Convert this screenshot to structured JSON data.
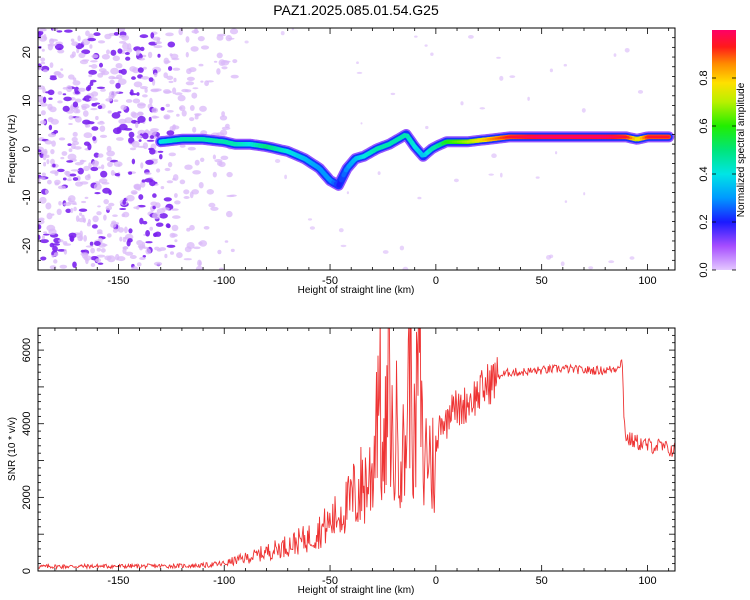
{
  "title": "PAZ1.2025.085.01.54.G25",
  "colors": {
    "snr_line": "#ee3333",
    "axis": "#000000",
    "noise_purple": "#7b22ee",
    "noise_light": "#d9b8f8"
  },
  "chart_data": [
    {
      "type": "heatmap",
      "title": "PAZ1.2025.085.01.54.G25",
      "xlabel": "Height of straight line (km)",
      "ylabel": "Frequency (Hz)",
      "xlim": [
        -188,
        113
      ],
      "ylim": [
        -25,
        25
      ],
      "x_ticks": [
        -150,
        -100,
        -50,
        0,
        50,
        100
      ],
      "y_ticks": [
        -20,
        -10,
        0,
        10,
        20
      ],
      "colorbar": {
        "label": "Normalized spectral amplitude",
        "range": [
          0,
          1
        ],
        "ticks": [
          "0.0",
          "0.2",
          "0.4",
          "0.6",
          "0.8"
        ],
        "tick_values": [
          0.0,
          0.2,
          0.4,
          0.6,
          0.8
        ]
      },
      "ridge": {
        "x": [
          -130,
          -120,
          -110,
          -100,
          -95,
          -88,
          -80,
          -70,
          -62,
          -55,
          -50,
          -46,
          -42,
          -38,
          -34,
          -28,
          -22,
          -18,
          -14,
          -10,
          -6,
          -2,
          0,
          5,
          15,
          25,
          35,
          50,
          65,
          80,
          90,
          95,
          100,
          105,
          110
        ],
        "y": [
          1.5,
          2.0,
          2.0,
          1.5,
          1.0,
          1.0,
          0.5,
          -0.5,
          -2.0,
          -4.0,
          -6.5,
          -7.5,
          -4.0,
          -2.0,
          -1.5,
          0.0,
          1.0,
          2.0,
          3.0,
          0.5,
          -1.5,
          0.0,
          0.5,
          1.5,
          1.5,
          2.0,
          2.5,
          2.5,
          2.5,
          2.5,
          2.5,
          2.0,
          2.5,
          2.5,
          2.5
        ],
        "amplitude": [
          0.4,
          0.45,
          0.45,
          0.45,
          0.45,
          0.4,
          0.5,
          0.4,
          0.35,
          0.3,
          0.3,
          0.2,
          0.3,
          0.35,
          0.4,
          0.45,
          0.45,
          0.45,
          0.45,
          0.4,
          0.35,
          0.45,
          0.45,
          0.55,
          0.65,
          0.8,
          0.9,
          0.95,
          0.95,
          0.95,
          0.9,
          0.7,
          0.9,
          0.9,
          0.9
        ]
      }
    },
    {
      "type": "line",
      "xlabel": "Height of straight line (km)",
      "ylabel": "SNR (10 * v/v)",
      "xlim": [
        -188,
        113
      ],
      "ylim": [
        0,
        6600
      ],
      "x_ticks": [
        -150,
        -100,
        -50,
        0,
        50,
        100
      ],
      "y_ticks": [
        0,
        2000,
        4000,
        6000
      ],
      "series": [
        {
          "x": [
            -188,
            -160,
            -140,
            -120,
            -110,
            -100,
            -95,
            -90,
            -85,
            -80,
            -75,
            -70,
            -65,
            -60,
            -55,
            -50,
            -45,
            -40,
            -35,
            -30,
            -27,
            -25,
            -22,
            -20,
            -18,
            -15,
            -12,
            -10,
            -8,
            -6,
            -4,
            -2,
            0,
            2,
            5,
            8,
            10,
            15,
            20,
            25,
            30,
            35,
            40,
            50,
            60,
            70,
            80,
            85,
            88,
            89,
            90,
            95,
            100,
            105,
            110,
            113
          ],
          "values": [
            120,
            130,
            130,
            140,
            150,
            200,
            280,
            350,
            420,
            520,
            600,
            700,
            800,
            900,
            1100,
            1300,
            1600,
            1900,
            2300,
            2600,
            5700,
            2400,
            5200,
            2800,
            4200,
            2900,
            6000,
            3000,
            6500,
            2600,
            3500,
            2900,
            2900,
            4200,
            4000,
            4800,
            4300,
            4600,
            4800,
            5100,
            5300,
            5400,
            5400,
            5450,
            5500,
            5450,
            5450,
            5500,
            5700,
            4100,
            3600,
            3500,
            3400,
            3400,
            3300,
            3300
          ]
        }
      ]
    }
  ]
}
